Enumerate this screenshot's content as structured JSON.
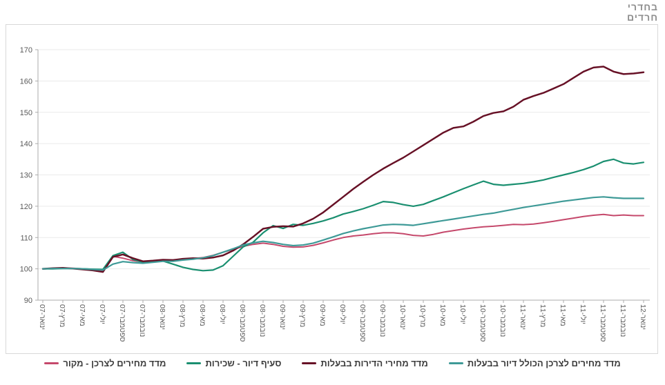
{
  "logo": {
    "line1": "בחדרי",
    "line2": "חרדים"
  },
  "chart_data": {
    "type": "line",
    "title": "",
    "xlabel": "",
    "ylabel": "",
    "ylim": [
      90,
      170
    ],
    "y_ticks": [
      90,
      100,
      110,
      120,
      130,
      140,
      150,
      160,
      170
    ],
    "grid": "horizontal",
    "legend_position": "bottom",
    "x_labels": [
      "ינואר-07",
      "מרץ-07",
      "מאי-07",
      "יולי-07",
      "ספטמבר-07",
      "נובמבר-07",
      "ינואר-08",
      "מרץ-08",
      "מאי-08",
      "יולי-08",
      "ספטמבר-08",
      "נובמבר-08",
      "ינואר-09",
      "מרץ-09",
      "מאי-09",
      "יולי-09",
      "ספטמבר-09",
      "נובמבר-09",
      "ינואר-10",
      "מרץ-10",
      "מאי-10",
      "יולי-10",
      "ספטמבר-10",
      "נובמבר-10",
      "ינואר-11",
      "מרץ-11",
      "מאי-11",
      "יולי-11",
      "ספטמבר-11",
      "נובמבר-11",
      "ינואר-12"
    ],
    "x_label_interval_months": 2,
    "series": [
      {
        "name": "מדד מחירים לצרכן - מקור",
        "color": "#C5486B",
        "width": 2,
        "values": [
          100,
          100.1,
          100.2,
          100.2,
          100,
          99.7,
          99.4,
          104,
          103.4,
          102.6,
          102.2,
          102.5,
          102.7,
          102.6,
          103,
          103.3,
          103.6,
          104.3,
          105.3,
          106.2,
          107.2,
          107.8,
          108.2,
          107.8,
          107.2,
          106.9,
          107,
          107.5,
          108.3,
          109.2,
          110,
          110.5,
          110.8,
          111.2,
          111.5,
          111.5,
          111.2,
          110.7,
          110.5,
          111,
          111.7,
          112.2,
          112.7,
          113.1,
          113.4,
          113.6,
          113.9,
          114.2,
          114.1,
          114.3,
          114.7,
          115.2,
          115.7,
          116.2,
          116.7,
          117.1,
          117.4,
          117,
          117.2,
          117,
          117
        ]
      },
      {
        "name": "סעיף דיור - שכירות",
        "color": "#1A8F70",
        "width": 2.2,
        "values": [
          100,
          100,
          100.1,
          100.1,
          100,
          99.9,
          99.8,
          104.2,
          105.3,
          103,
          102.1,
          102.3,
          102.5,
          101.5,
          100.5,
          99.8,
          99.4,
          99.6,
          101,
          104,
          107,
          108.5,
          111.5,
          113.8,
          112.9,
          114.2,
          113.9,
          114.5,
          115.3,
          116.3,
          117.5,
          118.3,
          119.2,
          120.3,
          121.5,
          121.2,
          120.5,
          120,
          120.6,
          121.8,
          123,
          124.3,
          125.6,
          126.8,
          128,
          127,
          126.7,
          127,
          127.3,
          127.8,
          128.4,
          129.2,
          130,
          130.8,
          131.7,
          132.8,
          134.3,
          135,
          133.8,
          133.5,
          134
        ]
      },
      {
        "name": "מדד מחירי הדירות בבעלות",
        "color": "#671126",
        "width": 2.5,
        "values": [
          100,
          100.2,
          100.3,
          100.1,
          99.8,
          99.5,
          99,
          103.8,
          104.6,
          103.4,
          102.4,
          102.6,
          102.9,
          102.8,
          103.2,
          103.4,
          103.3,
          103.6,
          104.3,
          105.8,
          107.8,
          110.2,
          112.8,
          113.4,
          113.6,
          113.5,
          114.5,
          116,
          118,
          120.5,
          123,
          125.5,
          127.8,
          130,
          132,
          133.8,
          135.5,
          137.5,
          139.5,
          141.5,
          143.5,
          145,
          145.5,
          147,
          148.8,
          149.8,
          150.3,
          151.8,
          154,
          155.2,
          156.2,
          157.6,
          159,
          161,
          163,
          164.3,
          164.6,
          163,
          162.2,
          162.4,
          162.8
        ]
      },
      {
        "name": "מדד מחירים לצרכן הכולל דיור בבעלות",
        "color": "#3E9A97",
        "width": 2.2,
        "values": [
          100,
          100.1,
          100.1,
          100.1,
          100,
          99.8,
          99.6,
          101.5,
          102.3,
          102,
          101.8,
          102.1,
          102.4,
          102.4,
          102.8,
          103.1,
          103.5,
          104.2,
          105.3,
          106.4,
          107.6,
          108.3,
          108.8,
          108.4,
          107.8,
          107.4,
          107.6,
          108.2,
          109.2,
          110.2,
          111.3,
          112.1,
          112.8,
          113.4,
          114,
          114.2,
          114.1,
          113.9,
          114.4,
          114.9,
          115.4,
          115.9,
          116.4,
          116.9,
          117.4,
          117.8,
          118.4,
          119,
          119.6,
          120.1,
          120.6,
          121.1,
          121.6,
          122,
          122.4,
          122.8,
          123,
          122.7,
          122.5,
          122.5,
          122.5
        ]
      }
    ],
    "colors": {
      "grid": "#eaeaea",
      "axis": "#ababab",
      "tick_text": "#595959"
    }
  }
}
